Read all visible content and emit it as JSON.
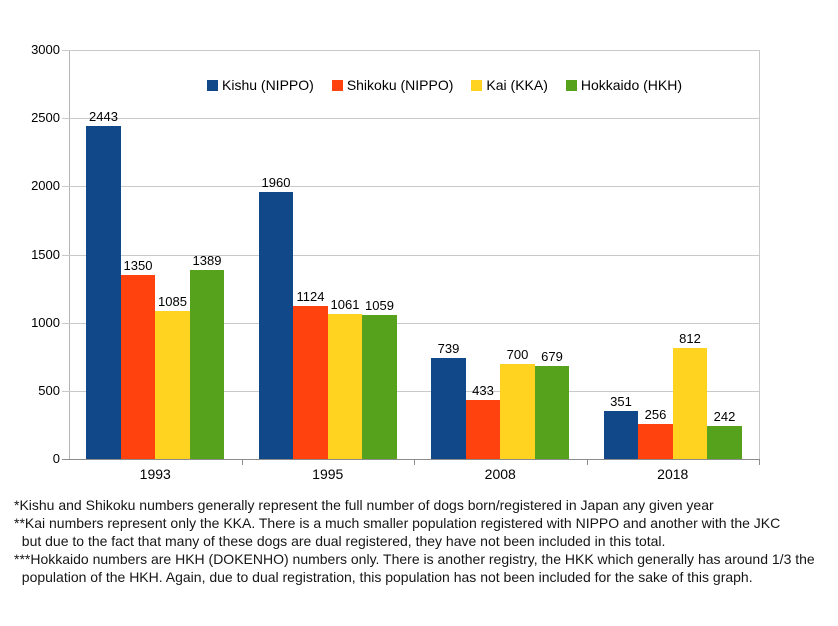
{
  "chart_data": {
    "type": "bar",
    "title": "",
    "xlabel": "",
    "ylabel": "",
    "categories": [
      "1993",
      "1995",
      "2008",
      "2018"
    ],
    "series": [
      {
        "name": "Kishu (NIPPO)",
        "color": "#114889",
        "values": [
          2443,
          1960,
          739,
          351
        ]
      },
      {
        "name": "Shikoku (NIPPO)",
        "color": "#FF420E",
        "values": [
          1350,
          1124,
          433,
          256
        ]
      },
      {
        "name": "Kai (KKA)",
        "color": "#FFD320",
        "values": [
          1085,
          1061,
          700,
          812
        ]
      },
      {
        "name": "Hokkaido (HKH)",
        "color": "#57A21C",
        "values": [
          1389,
          1059,
          679,
          242
        ]
      }
    ],
    "ylim": [
      0,
      3000
    ],
    "ytick_step": 500,
    "ytick_labels": [
      "0",
      "500",
      "1000",
      "1500",
      "2000",
      "2500",
      "3000"
    ],
    "grid": true,
    "legend_position": "top"
  },
  "footnotes": {
    "lines": [
      "*Kishu and Shikoku numbers generally represent the full number of dogs born/registered in Japan any given year",
      "**Kai numbers represent only the KKA. There is a much smaller population registered with NIPPO and another with the JKC",
      "  but due to the fact that many of these dogs are dual registered, they have not been included in this total.",
      "***Hokkaido numbers are HKH (DOKENHO) numbers only. There is another registry, the HKK which generally has around 1/3 the",
      "  population of the HKH. Again, due to dual registration, this population has not been included for the sake of this graph."
    ]
  }
}
